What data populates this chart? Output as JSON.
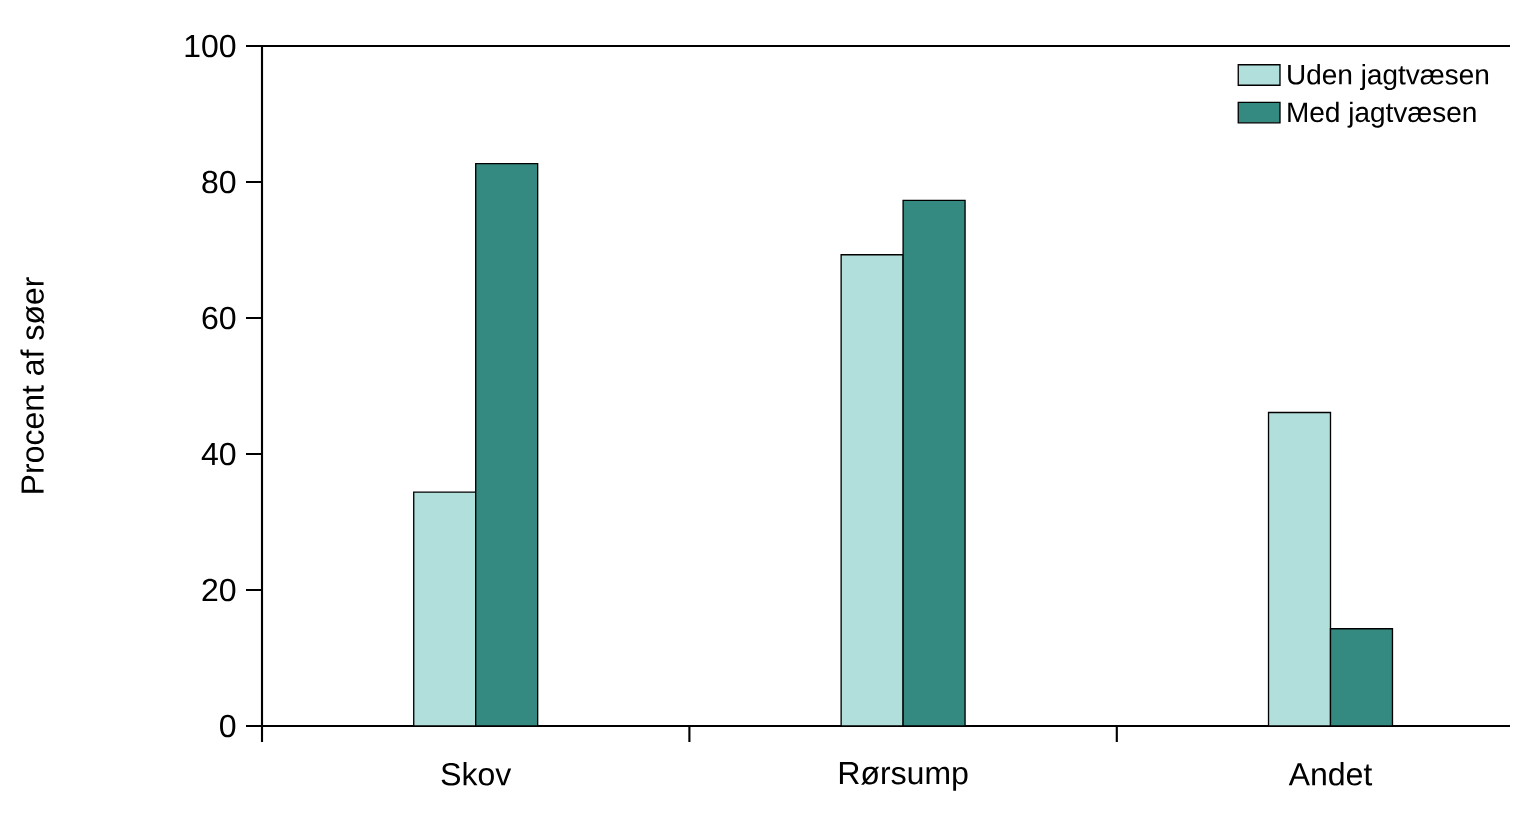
{
  "chart_data": {
    "type": "bar",
    "ylabel": "Procent af søer",
    "categories": [
      "Skov",
      "Rørsump",
      "Andet"
    ],
    "series": [
      {
        "name": "Uden jagtvæsen",
        "color": "#b1dfdb",
        "values": [
          34.4,
          69.3,
          46.1
        ]
      },
      {
        "name": "Med jagtvæsen",
        "color": "#348a80",
        "values": [
          82.7,
          77.3,
          14.3
        ]
      }
    ],
    "ylim": [
      0,
      100
    ],
    "yticks": [
      0,
      20,
      40,
      60,
      80,
      100
    ],
    "legend": "top right"
  }
}
